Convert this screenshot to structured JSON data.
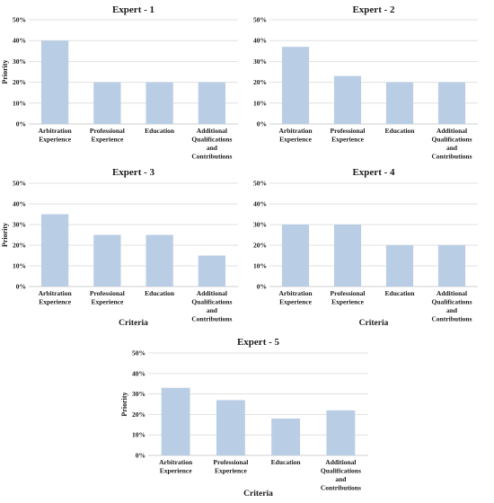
{
  "chart_data": [
    {
      "type": "bar",
      "title": "Expert - 1",
      "ylabel": "Priority",
      "xlabel": "",
      "ylim": [
        0,
        50
      ],
      "yticks": [
        "0%",
        "10%",
        "20%",
        "30%",
        "40%",
        "50%"
      ],
      "categories": [
        [
          "Arbitration",
          "Experience"
        ],
        [
          "Professional",
          "Experience"
        ],
        [
          "Education"
        ],
        [
          "Additional",
          "Qualifications",
          "and",
          "Contributions"
        ]
      ],
      "values": [
        40,
        20,
        20,
        20
      ],
      "grid": true
    },
    {
      "type": "bar",
      "title": "Expert - 2",
      "ylabel": "",
      "xlabel": "",
      "ylim": [
        0,
        50
      ],
      "yticks": [
        "0%",
        "10%",
        "20%",
        "30%",
        "40%",
        "50%"
      ],
      "categories": [
        [
          "Arbitration",
          "Experience"
        ],
        [
          "Professional",
          "Experience"
        ],
        [
          "Education"
        ],
        [
          "Additional",
          "Qualifications",
          "and",
          "Contributions"
        ]
      ],
      "values": [
        37,
        23,
        20,
        20
      ],
      "grid": true
    },
    {
      "type": "bar",
      "title": "Expert - 3",
      "ylabel": "Priority",
      "xlabel": "Criteria",
      "ylim": [
        0,
        50
      ],
      "yticks": [
        "0%",
        "10%",
        "20%",
        "30%",
        "40%",
        "50%"
      ],
      "categories": [
        [
          "Arbitration",
          "Experience"
        ],
        [
          "Professional",
          "Experience"
        ],
        [
          "Education"
        ],
        [
          "Additional",
          "Qualifications",
          "and",
          "Contributions"
        ]
      ],
      "values": [
        35,
        25,
        25,
        15
      ],
      "grid": true
    },
    {
      "type": "bar",
      "title": "Expert - 4",
      "ylabel": "",
      "xlabel": "Criteria",
      "ylim": [
        0,
        50
      ],
      "yticks": [
        "0%",
        "10%",
        "20%",
        "30%",
        "40%",
        "50%"
      ],
      "categories": [
        [
          "Arbitration",
          "Experience"
        ],
        [
          "Professional",
          "Experience"
        ],
        [
          "Education"
        ],
        [
          "Additional",
          "Qualifications",
          "and",
          "Contributions"
        ]
      ],
      "values": [
        30,
        30,
        20,
        20
      ],
      "grid": true
    },
    {
      "type": "bar",
      "title": "Expert - 5",
      "ylabel": "Priority",
      "xlabel": "Criteria",
      "ylim": [
        0,
        50
      ],
      "yticks": [
        "0%",
        "10%",
        "20%",
        "30%",
        "40%",
        "50%"
      ],
      "categories": [
        [
          "Arbitration",
          "Experience"
        ],
        [
          "Professional",
          "Experience"
        ],
        [
          "Education"
        ],
        [
          "Additional",
          "Qualifications",
          "and",
          "Contributions"
        ]
      ],
      "values": [
        33,
        27,
        18,
        22
      ],
      "grid": true
    }
  ],
  "colors": {
    "bar": "#b9cde5"
  }
}
